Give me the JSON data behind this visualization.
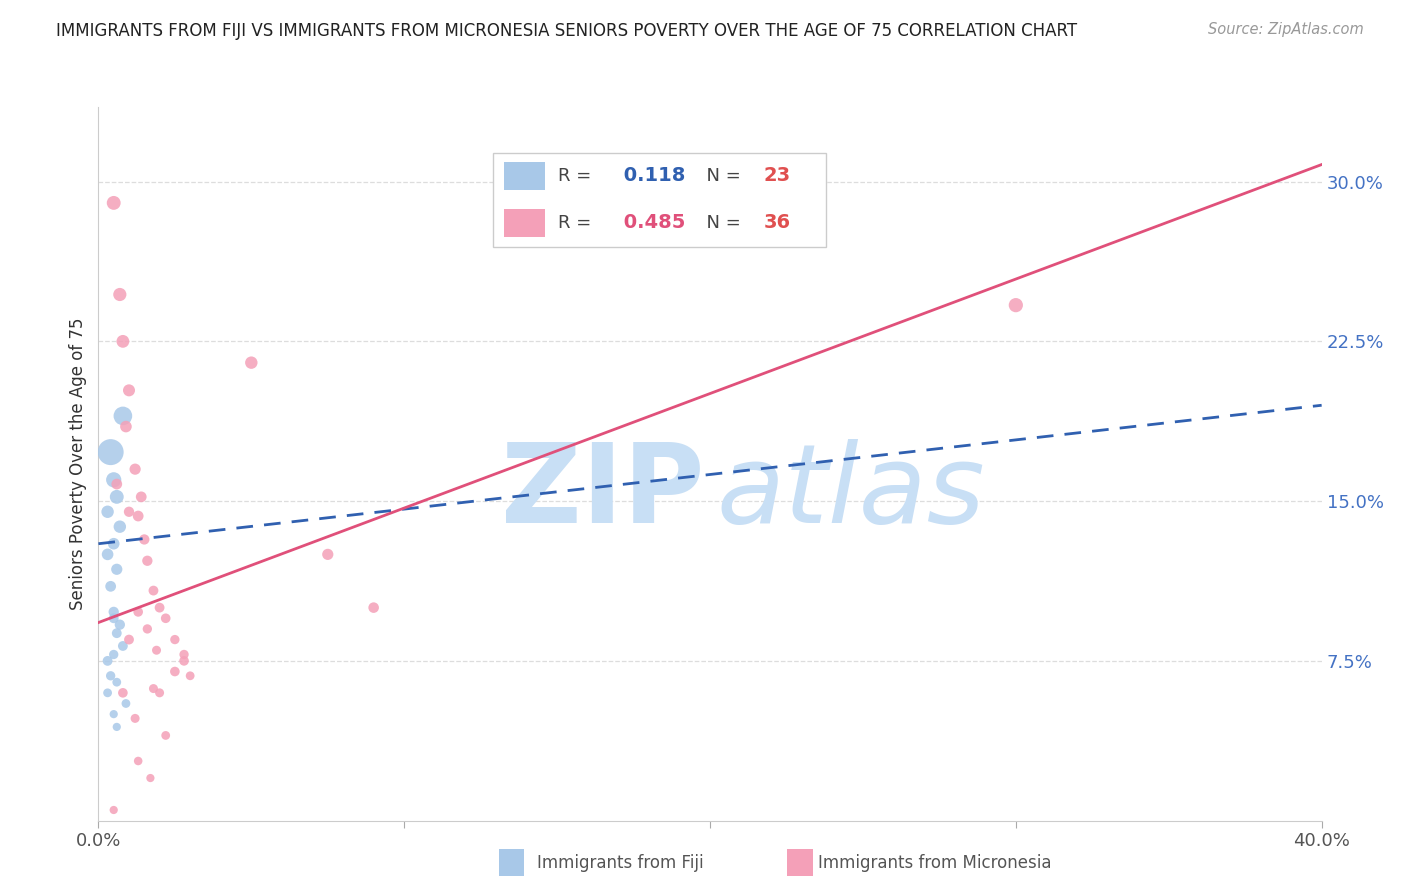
{
  "title": "IMMIGRANTS FROM FIJI VS IMMIGRANTS FROM MICRONESIA SENIORS POVERTY OVER THE AGE OF 75 CORRELATION CHART",
  "source": "Source: ZipAtlas.com",
  "ylabel": "Seniors Poverty Over the Age of 75",
  "xlim": [
    0.0,
    0.4
  ],
  "ylim": [
    0.0,
    0.335
  ],
  "fiji_R": 0.118,
  "fiji_N": 23,
  "micro_R": 0.485,
  "micro_N": 36,
  "fiji_color": "#a8c8e8",
  "micro_color": "#f4a0b8",
  "fiji_line_color": "#3060b0",
  "micro_line_color": "#e0507a",
  "watermark_zip_color": "#c8dff5",
  "watermark_atlas_color": "#c8dff5",
  "legend_border_color": "#cccccc",
  "grid_color": "#dddddd",
  "ytick_color": "#4472c4",
  "xtick_color": "#555555",
  "fiji_line_x": [
    0.0,
    0.4
  ],
  "fiji_line_y": [
    0.13,
    0.195
  ],
  "micro_line_x": [
    0.0,
    0.4
  ],
  "micro_line_y": [
    0.093,
    0.308
  ],
  "fiji_points_x": [
    0.004,
    0.008,
    0.005,
    0.006,
    0.003,
    0.007,
    0.005,
    0.003,
    0.006,
    0.004,
    0.005,
    0.007,
    0.006,
    0.008,
    0.005,
    0.004,
    0.006,
    0.003,
    0.009,
    0.005,
    0.006,
    0.005,
    0.003
  ],
  "fiji_points_y": [
    0.173,
    0.19,
    0.16,
    0.152,
    0.145,
    0.138,
    0.13,
    0.125,
    0.118,
    0.11,
    0.098,
    0.092,
    0.088,
    0.082,
    0.078,
    0.068,
    0.065,
    0.06,
    0.055,
    0.05,
    0.044,
    0.095,
    0.075
  ],
  "fiji_sizes": [
    350,
    180,
    120,
    100,
    80,
    80,
    70,
    70,
    65,
    60,
    55,
    55,
    50,
    50,
    45,
    45,
    40,
    40,
    40,
    35,
    35,
    50,
    50
  ],
  "micro_points_x": [
    0.005,
    0.007,
    0.008,
    0.01,
    0.009,
    0.012,
    0.014,
    0.013,
    0.015,
    0.016,
    0.018,
    0.02,
    0.022,
    0.025,
    0.028,
    0.03,
    0.006,
    0.01,
    0.013,
    0.016,
    0.019,
    0.05,
    0.075,
    0.09,
    0.3,
    0.008,
    0.012,
    0.022,
    0.013,
    0.017,
    0.025,
    0.02,
    0.028,
    0.018,
    0.01,
    0.005
  ],
  "micro_points_y": [
    0.29,
    0.247,
    0.225,
    0.202,
    0.185,
    0.165,
    0.152,
    0.143,
    0.132,
    0.122,
    0.108,
    0.1,
    0.095,
    0.085,
    0.078,
    0.068,
    0.158,
    0.145,
    0.098,
    0.09,
    0.08,
    0.215,
    0.125,
    0.1,
    0.242,
    0.06,
    0.048,
    0.04,
    0.028,
    0.02,
    0.07,
    0.06,
    0.075,
    0.062,
    0.085,
    0.005
  ],
  "micro_sizes": [
    100,
    90,
    85,
    75,
    70,
    65,
    60,
    60,
    55,
    55,
    50,
    50,
    48,
    45,
    45,
    40,
    60,
    55,
    48,
    45,
    42,
    80,
    65,
    58,
    105,
    48,
    42,
    40,
    38,
    35,
    48,
    42,
    48,
    42,
    50,
    35
  ]
}
